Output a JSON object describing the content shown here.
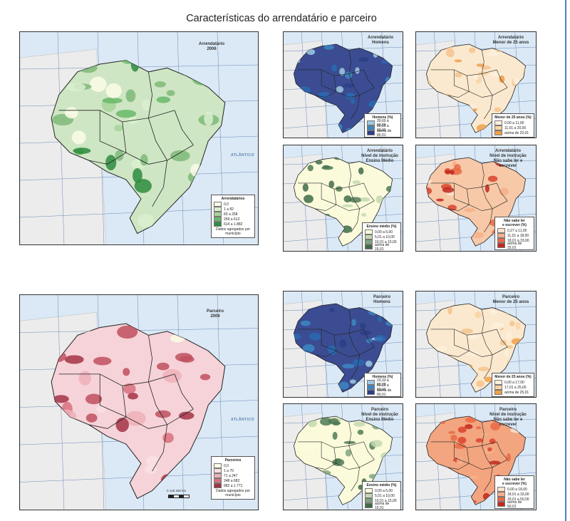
{
  "page": {
    "title": "Características do arrendatário e parceiro"
  },
  "colors": {
    "ocean": "#dbe9f6",
    "neighbor_land": "#ececec",
    "border": "#333333",
    "accent_rule": "#4d7fc4"
  },
  "maps": {
    "arrendatario_main": {
      "title": "Arrendatário\n2006",
      "fill": "#cfe6c4",
      "patch_color": "#7fb97a",
      "legend": {
        "title": "Arrendatários",
        "items": [
          {
            "label": "0,0",
            "color": "#fbfbe6"
          },
          {
            "label": "1 a 82",
            "color": "#d9efcf"
          },
          {
            "label": "83 a 258",
            "color": "#a7d39b"
          },
          {
            "label": "259 a 613",
            "color": "#6ab86a"
          },
          {
            "label": "614 a 1.882",
            "color": "#2e8b3e"
          }
        ],
        "note": "Dados agregados por\nmunicípio"
      }
    },
    "arrendatario_homens": {
      "title": "Arrendatário\nHomens",
      "fill": "#3b4c92",
      "patch_color": "#2a6ab0",
      "legend": {
        "title": "Homens (%)",
        "items": [
          {
            "label": "29,60 a 60,00",
            "color": "#9ec9e2"
          },
          {
            "label": "60,01 a 80,00",
            "color": "#3d87c2"
          },
          {
            "label": "acima de 80,01",
            "color": "#2b3f86"
          }
        ],
        "note": ""
      }
    },
    "arrendatario_menor25": {
      "title": "Arrendatário\nMenor de 25 anos",
      "fill": "#fbe9cf",
      "patch_color": "#f4c38e",
      "legend": {
        "title": "Menor de 25 anos (%)",
        "items": [
          {
            "label": "0,00 a 11,00",
            "color": "#fdf1dc"
          },
          {
            "label": "11,01 a 20,00",
            "color": "#f9d4a4"
          },
          {
            "label": "acima de 20,01",
            "color": "#f0a04a"
          }
        ],
        "note": ""
      }
    },
    "arrendatario_escolaridade": {
      "title": "Arrendatário\nNível de instrução\nEnsino Médio",
      "fill": "#fbfbdc",
      "patch_color": "#4f7a55",
      "legend": {
        "title": "Ensino médio (%)",
        "items": [
          {
            "label": "0,00 a 5,00",
            "color": "#fbfbdc"
          },
          {
            "label": "5,01 a 10,00",
            "color": "#c4d8b0"
          },
          {
            "label": "10,01 a 15,00",
            "color": "#7ea37c"
          },
          {
            "label": "acima de 15,01",
            "color": "#3f6b48"
          }
        ],
        "note": ""
      }
    },
    "arrendatario_nao_sabe_ler": {
      "title": "Arrendatário\nNível de instrução\nNão sabe ler e escrever",
      "fill": "#f7c9a8",
      "patch_color": "#d9432e",
      "legend": {
        "title": "Não sabe ler\ne escrever (%)",
        "items": [
          {
            "label": "0,27 a 11,00",
            "color": "#fce3cf"
          },
          {
            "label": "11,01 a 18,00",
            "color": "#f6b08a"
          },
          {
            "label": "18,01 a 33,00",
            "color": "#e86a45"
          },
          {
            "label": "acima de 33,01",
            "color": "#c0281f"
          }
        ],
        "note": ""
      }
    },
    "parceiro_main": {
      "title": "Parceiro\n2006",
      "fill": "#f6d3d8",
      "patch_color": "#c0505f",
      "legend": {
        "title": "Parceiros",
        "items": [
          {
            "label": "0,0",
            "color": "#fbfbe6"
          },
          {
            "label": "1 a 70",
            "color": "#f9e0e3"
          },
          {
            "label": "71 a 247",
            "color": "#efb0b8"
          },
          {
            "label": "248 a 682",
            "color": "#d9707f"
          },
          {
            "label": "682 a 1.771",
            "color": "#a33246"
          }
        ],
        "note": "Dados agregados por\nmunicípio"
      }
    },
    "parceiro_homens": {
      "title": "Parceiro\nHomens",
      "fill": "#3b4c92",
      "patch_color": "#2a6ab0",
      "legend": {
        "title": "Homens (%)",
        "items": [
          {
            "label": "23,33 a 60,00",
            "color": "#9ec9e2"
          },
          {
            "label": "60,01 a 80,00",
            "color": "#3d87c2"
          },
          {
            "label": "acima de 80,01",
            "color": "#2b3f86"
          }
        ],
        "note": ""
      }
    },
    "parceiro_menor25": {
      "title": "Parceiro\nMenor de 25 anos",
      "fill": "#fbe9cf",
      "patch_color": "#f4c38e",
      "legend": {
        "title": "Menor de 25 anos (%)",
        "items": [
          {
            "label": "0,00 a 17,00",
            "color": "#fdf1dc"
          },
          {
            "label": "17,01 a 25,00",
            "color": "#f9d4a4"
          },
          {
            "label": "acima de 25,01",
            "color": "#f0a04a"
          }
        ],
        "note": ""
      }
    },
    "parceiro_escolaridade": {
      "title": "Parceiro\nNível de instrução\nEnsino Médio",
      "fill": "#fbfbdc",
      "patch_color": "#4f7a55",
      "legend": {
        "title": "Ensino médio (%)",
        "items": [
          {
            "label": "0,00 a 5,00",
            "color": "#fbfbdc"
          },
          {
            "label": "5,01 a 10,00",
            "color": "#c4d8b0"
          },
          {
            "label": "10,01 a 15,00",
            "color": "#7ea37c"
          },
          {
            "label": "acima de 15,01",
            "color": "#3f6b48"
          }
        ],
        "note": ""
      }
    },
    "parceiro_nao_sabe_ler": {
      "title": "Parceiro\nNível de instrução\nNão sabe ler e escrever",
      "fill": "#f3a57f",
      "patch_color": "#d9432e",
      "legend": {
        "title": "Não sabe ler\ne escrever (%)",
        "items": [
          {
            "label": "0,00 a 18,00",
            "color": "#fce3cf"
          },
          {
            "label": "18,01 a 33,00",
            "color": "#f6b08a"
          },
          {
            "label": "33,01 a 50,00",
            "color": "#e86a45"
          },
          {
            "label": "acima de 50,01",
            "color": "#c0281f"
          }
        ],
        "note": ""
      }
    }
  },
  "scale": {
    "label": "0  125  250 km"
  }
}
